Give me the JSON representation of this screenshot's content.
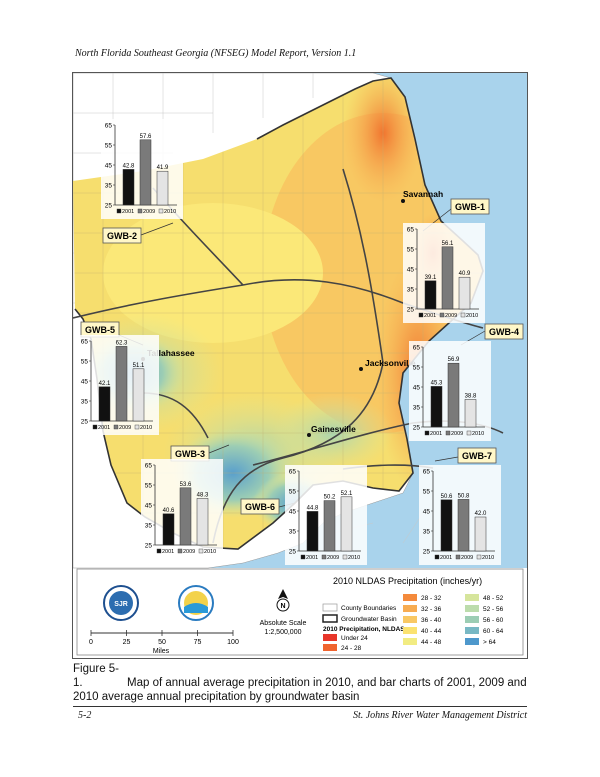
{
  "header": "North Florida Southeast Georgia (NFSEG) Model Report, Version 1.1",
  "places": [
    {
      "name": "Savannah"
    },
    {
      "name": "Jacksonville"
    },
    {
      "name": "Tallahassee"
    },
    {
      "name": "Gainesville"
    }
  ],
  "basin_labels": [
    "GWB-1",
    "GWB-2",
    "GWB-3",
    "GWB-4",
    "GWB-5",
    "GWB-6",
    "GWB-7"
  ],
  "chart_data": [
    {
      "type": "bar",
      "basin": "GWB-2",
      "categories": [
        "2001",
        "2009",
        "2010"
      ],
      "values": [
        42.8,
        57.6,
        41.9
      ],
      "ylim": [
        25,
        65
      ],
      "yticks": [
        25,
        35,
        45,
        55,
        65
      ]
    },
    {
      "type": "bar",
      "basin": "GWB-1",
      "categories": [
        "2001",
        "2009",
        "2010"
      ],
      "values": [
        39.1,
        56.1,
        40.9
      ],
      "ylim": [
        25,
        65
      ],
      "yticks": [
        25,
        35,
        45,
        55,
        65
      ]
    },
    {
      "type": "bar",
      "basin": "GWB-5",
      "categories": [
        "2001",
        "2009",
        "2010"
      ],
      "values": [
        42.1,
        62.3,
        51.1
      ],
      "ylim": [
        25,
        65
      ],
      "yticks": [
        25,
        35,
        45,
        55,
        65
      ]
    },
    {
      "type": "bar",
      "basin": "GWB-4",
      "categories": [
        "2001",
        "2009",
        "2010"
      ],
      "values": [
        45.3,
        56.9,
        38.8
      ],
      "ylim": [
        25,
        65
      ],
      "yticks": [
        25,
        35,
        45,
        55,
        65
      ]
    },
    {
      "type": "bar",
      "basin": "GWB-3",
      "categories": [
        "2001",
        "2009",
        "2010"
      ],
      "values": [
        40.6,
        53.6,
        48.3
      ],
      "ylim": [
        25,
        65
      ],
      "yticks": [
        25,
        35,
        45,
        55,
        65
      ]
    },
    {
      "type": "bar",
      "basin": "GWB-6",
      "categories": [
        "2001",
        "2009",
        "2010"
      ],
      "values": [
        44.8,
        50.2,
        52.1
      ],
      "ylim": [
        25,
        65
      ],
      "yticks": [
        25,
        35,
        45,
        55,
        65
      ]
    },
    {
      "type": "bar",
      "basin": "GWB-7",
      "categories": [
        "2001",
        "2009",
        "2010"
      ],
      "values": [
        50.6,
        50.8,
        42.0
      ],
      "ylim": [
        25,
        65
      ],
      "yticks": [
        25,
        35,
        45,
        55,
        65
      ]
    }
  ],
  "bar_colors": [
    "#111111",
    "#7a7a7a",
    "#e4e4e4"
  ],
  "legend": {
    "title": "2010 NLDAS Precipitation (inches/yr)",
    "county": "County Boundaries",
    "basin": "Groundwater Basin",
    "precip_title": "2010 Precipitation, NLDAS",
    "classes": [
      {
        "label": "Under 24",
        "color": "#e8362a"
      },
      {
        "label": "24 - 28",
        "color": "#f0642f"
      },
      {
        "label": "28 - 32",
        "color": "#f48a3c"
      },
      {
        "label": "32 - 36",
        "color": "#f7ac52"
      },
      {
        "label": "36 - 40",
        "color": "#f9c864"
      },
      {
        "label": "40 - 44",
        "color": "#fbe270"
      },
      {
        "label": "44 - 48",
        "color": "#f2ec82"
      },
      {
        "label": "48 - 52",
        "color": "#d6e59c"
      },
      {
        "label": "52 - 56",
        "color": "#bcdcac"
      },
      {
        "label": "56 - 60",
        "color": "#9ccdb4"
      },
      {
        "label": "60 - 64",
        "color": "#78b8c4"
      },
      {
        "label": "> 64",
        "color": "#4e98cc"
      }
    ],
    "scale_ticks": [
      "0",
      "25",
      "50",
      "75",
      "100"
    ],
    "scale_unit": "Miles",
    "abs_scale_1": "Absolute Scale",
    "abs_scale_2": "1:2,500,000",
    "north": "N"
  },
  "caption": {
    "number": "Figure 5-1.",
    "text": "Map of annual average precipitation in 2010, and bar charts of 2001, 2009 and",
    "text2": "2010 average annual precipitation by groundwater basin"
  },
  "footer": {
    "left": "5-2",
    "right": "St. Johns River Water Management District"
  }
}
